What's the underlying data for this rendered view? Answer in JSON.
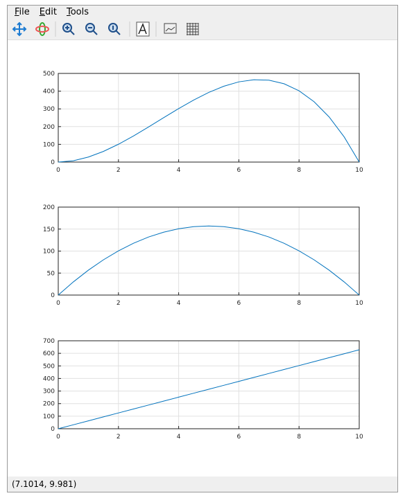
{
  "menu": [
    "File",
    "Edit",
    "Tools"
  ],
  "status": "(7.1014, 9.981)",
  "chart_data": [
    {
      "type": "line",
      "color": "#0072bd",
      "grid": true,
      "x": [
        0,
        0.5,
        1,
        1.5,
        2,
        2.5,
        3,
        3.5,
        4,
        4.5,
        5,
        5.5,
        6,
        6.5,
        7,
        7.5,
        8,
        8.5,
        9,
        9.5,
        10
      ],
      "values": [
        0,
        7.46,
        28.27,
        60.08,
        100.53,
        147.26,
        197.92,
        250.15,
        301.59,
        349.9,
        392.7,
        427.65,
        452.39,
        464.56,
        461.81,
        441.79,
        402.12,
        340.47,
        254.47,
        141.76,
        0
      ],
      "xlim": [
        0,
        10
      ],
      "xticks": [
        0,
        2,
        4,
        6,
        8,
        10
      ],
      "ylim": [
        0,
        500
      ],
      "yticks": [
        0,
        100,
        200,
        300,
        400,
        500
      ]
    },
    {
      "type": "line",
      "color": "#0072bd",
      "grid": true,
      "x": [
        0,
        0.5,
        1,
        1.5,
        2,
        2.5,
        3,
        3.5,
        4,
        4.5,
        5,
        5.5,
        6,
        6.5,
        7,
        7.5,
        8,
        8.5,
        9,
        9.5,
        10
      ],
      "values": [
        0,
        29.85,
        56.55,
        80.11,
        100.53,
        117.81,
        131.95,
        142.94,
        150.8,
        155.51,
        157.08,
        155.51,
        150.8,
        142.94,
        131.95,
        117.81,
        100.53,
        80.11,
        56.55,
        29.85,
        0
      ],
      "xlim": [
        0,
        10
      ],
      "xticks": [
        0,
        2,
        4,
        6,
        8,
        10
      ],
      "ylim": [
        0,
        200
      ],
      "yticks": [
        0,
        50,
        100,
        150,
        200
      ]
    },
    {
      "type": "line",
      "color": "#0072bd",
      "grid": true,
      "x": [
        0,
        0.5,
        1,
        1.5,
        2,
        2.5,
        3,
        3.5,
        4,
        4.5,
        5,
        5.5,
        6,
        6.5,
        7,
        7.5,
        8,
        8.5,
        9,
        9.5,
        10
      ],
      "values": [
        0,
        31.42,
        62.83,
        94.25,
        125.66,
        157.08,
        188.5,
        219.91,
        251.33,
        282.74,
        314.16,
        345.58,
        376.99,
        408.41,
        439.82,
        471.24,
        502.65,
        534.07,
        565.49,
        596.9,
        628.32
      ],
      "xlim": [
        0,
        10
      ],
      "xticks": [
        0,
        2,
        4,
        6,
        8,
        10
      ],
      "ylim": [
        0,
        700
      ],
      "yticks": [
        0,
        100,
        200,
        300,
        400,
        500,
        600,
        700
      ]
    }
  ]
}
